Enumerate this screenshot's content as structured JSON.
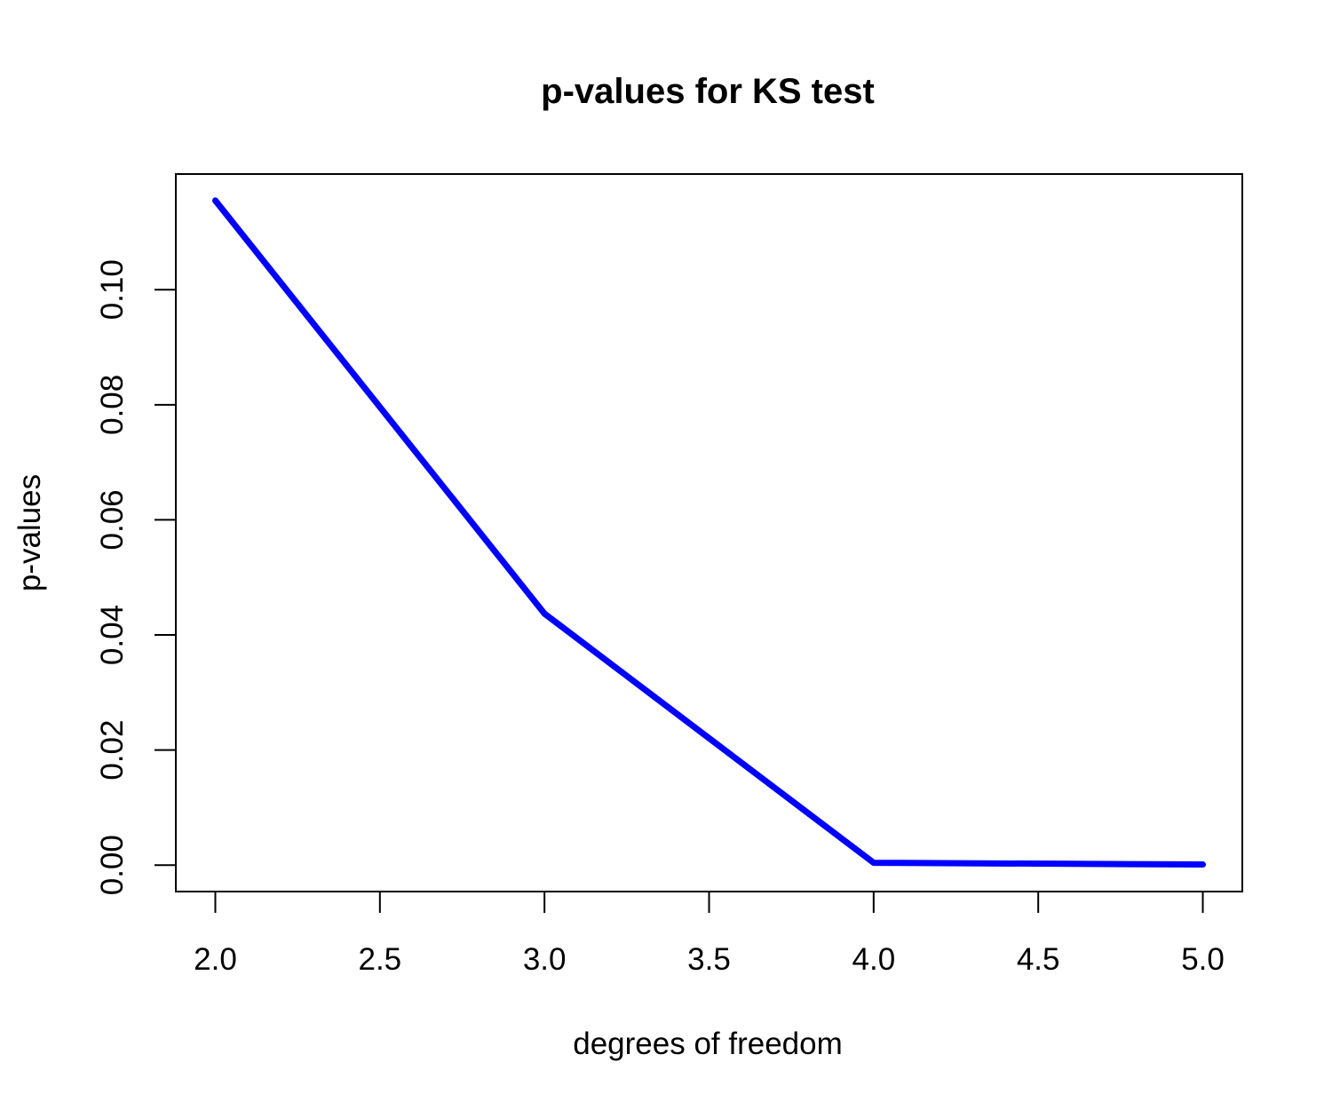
{
  "chart_data": {
    "type": "line",
    "title": "p-values for KS test",
    "xlabel": "degrees of freedom",
    "ylabel": "p-values",
    "x": [
      2,
      3,
      4,
      5
    ],
    "series": [
      {
        "values": [
          0.1155,
          0.0437,
          0.0004,
          0.0001
        ]
      }
    ],
    "xlim": [
      1.88,
      5.12
    ],
    "ylim": [
      -0.0046,
      0.1201
    ],
    "xticks": [
      2.0,
      2.5,
      3.0,
      3.5,
      4.0,
      4.5,
      5.0
    ],
    "xtick_labels": [
      "2.0",
      "2.5",
      "3.0",
      "3.5",
      "4.0",
      "4.5",
      "5.0"
    ],
    "yticks": [
      0.0,
      0.02,
      0.04,
      0.06,
      0.08,
      0.1
    ],
    "ytick_labels": [
      "0.00",
      "0.02",
      "0.04",
      "0.06",
      "0.08",
      "0.10"
    ],
    "line_color": "#0000ff",
    "grid": false,
    "legend": "none"
  }
}
